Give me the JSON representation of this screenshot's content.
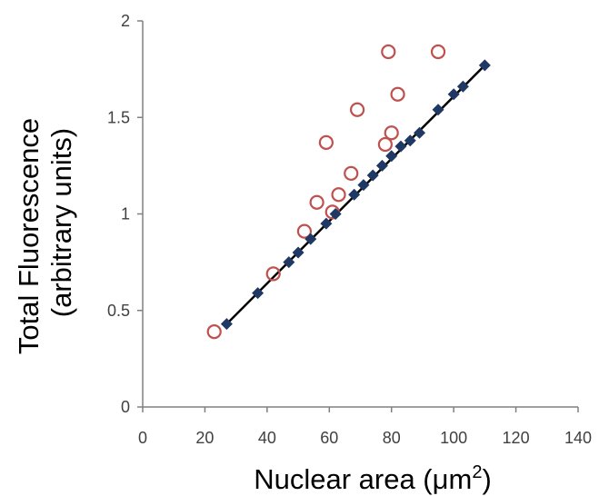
{
  "chart_data": {
    "type": "scatter",
    "title": "",
    "xlabel": "Nuclear area (μm",
    "xlabel_sup": "2",
    "xlabel_end": ")",
    "ylabel_line1": "Total Fluorescence",
    "ylabel_line2": "(arbitrary units)",
    "xlim": [
      0,
      140
    ],
    "ylim": [
      0,
      2
    ],
    "x_ticks": [
      0,
      20,
      40,
      60,
      80,
      100,
      120,
      140
    ],
    "y_ticks": [
      0,
      0.5,
      1,
      1.5,
      2
    ],
    "x_tick_labels": [
      "0",
      "20",
      "40",
      "60",
      "80",
      "100",
      "120",
      "140"
    ],
    "y_tick_labels": [
      "0",
      "0.5",
      "1",
      "1.5",
      "2"
    ],
    "grid": false,
    "series": [
      {
        "marker": "open-circle",
        "color": "#c0504d",
        "points": [
          {
            "x": 23,
            "y": 0.39
          },
          {
            "x": 42,
            "y": 0.69
          },
          {
            "x": 52,
            "y": 0.91
          },
          {
            "x": 56,
            "y": 1.06
          },
          {
            "x": 59,
            "y": 1.37
          },
          {
            "x": 61,
            "y": 1.01
          },
          {
            "x": 63,
            "y": 1.1
          },
          {
            "x": 67,
            "y": 1.21
          },
          {
            "x": 69,
            "y": 1.54
          },
          {
            "x": 78,
            "y": 1.36
          },
          {
            "x": 79,
            "y": 1.84
          },
          {
            "x": 80,
            "y": 1.42
          },
          {
            "x": 82,
            "y": 1.62
          },
          {
            "x": 95,
            "y": 1.84
          }
        ]
      },
      {
        "marker": "diamond",
        "color": "#1f3864",
        "points": [
          {
            "x": 27,
            "y": 0.43
          },
          {
            "x": 37,
            "y": 0.59
          },
          {
            "x": 47,
            "y": 0.75
          },
          {
            "x": 50,
            "y": 0.8
          },
          {
            "x": 54,
            "y": 0.87
          },
          {
            "x": 59,
            "y": 0.95
          },
          {
            "x": 62,
            "y": 1.0
          },
          {
            "x": 68,
            "y": 1.1
          },
          {
            "x": 71,
            "y": 1.15
          },
          {
            "x": 74,
            "y": 1.2
          },
          {
            "x": 77,
            "y": 1.25
          },
          {
            "x": 80,
            "y": 1.3
          },
          {
            "x": 83,
            "y": 1.35
          },
          {
            "x": 86,
            "y": 1.38
          },
          {
            "x": 89,
            "y": 1.42
          },
          {
            "x": 95,
            "y": 1.54
          },
          {
            "x": 100,
            "y": 1.62
          },
          {
            "x": 103,
            "y": 1.66
          },
          {
            "x": 110,
            "y": 1.77
          }
        ]
      }
    ],
    "fit_line": {
      "x1": 27,
      "y1": 0.43,
      "x2": 110,
      "y2": 1.77,
      "color": "#000000"
    }
  }
}
